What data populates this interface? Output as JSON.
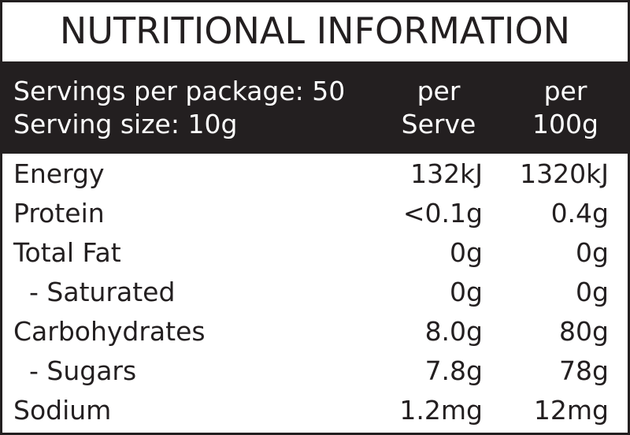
{
  "title": "NUTRITIONAL INFORMATION",
  "header": {
    "servings_per_package": "Servings per package: 50",
    "serving_size": "Serving size: 10g",
    "col1_line1": "per",
    "col1_line2": "Serve",
    "col2_line1": "per",
    "col2_line2": "100g"
  },
  "rows": [
    {
      "label": "Energy",
      "per_serve": "132kJ",
      "per_100g": "1320kJ"
    },
    {
      "label": "Protein",
      "per_serve": "<0.1g",
      "per_100g": "0.4g"
    },
    {
      "label": "Total Fat",
      "per_serve": "0g",
      "per_100g": "0g"
    },
    {
      "label": "- Saturated",
      "per_serve": "0g",
      "per_100g": "0g"
    },
    {
      "label": "Carbohydrates",
      "per_serve": "8.0g",
      "per_100g": "80g"
    },
    {
      "label": "- Sugars",
      "per_serve": "7.8g",
      "per_100g": "78g"
    },
    {
      "label": "Sodium",
      "per_serve": "1.2mg",
      "per_100g": "12mg"
    }
  ],
  "colors": {
    "ink": "#231f20",
    "background": "#ffffff"
  }
}
